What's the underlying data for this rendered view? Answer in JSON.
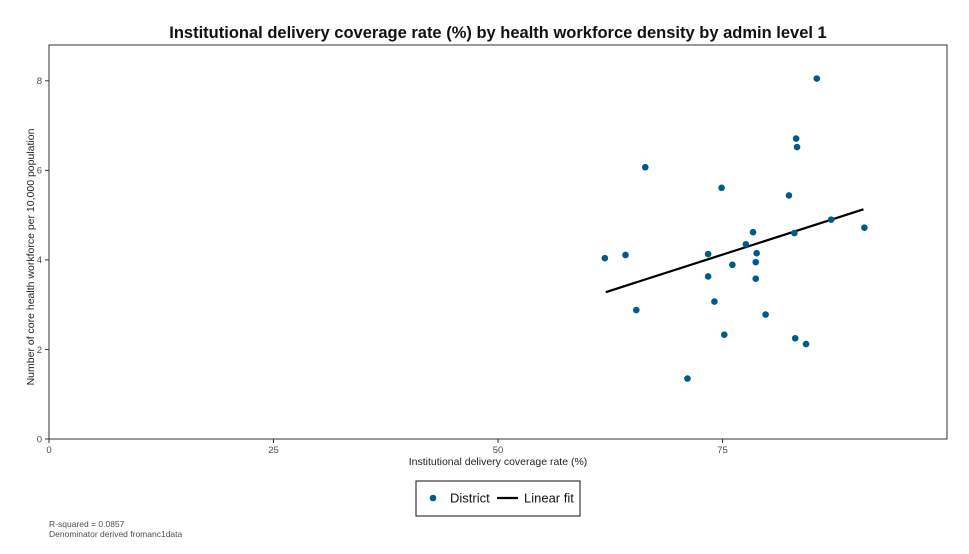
{
  "chart_data": {
    "type": "scatter",
    "title": "Institutional delivery coverage rate (%) by health workforce density by admin level 1",
    "xlabel": "Institutional delivery coverage rate (%)",
    "ylabel": "Number of core health workforce per 10,000 population",
    "xlim": [
      0,
      100
    ],
    "ylim": [
      0,
      8.8
    ],
    "x_ticks": [
      0,
      25,
      50,
      75
    ],
    "y_ticks": [
      0,
      2,
      4,
      6,
      8
    ],
    "grid": false,
    "legend_position": "bottom",
    "series": [
      {
        "name": "District",
        "kind": "points",
        "color": "#005a8c",
        "points": [
          {
            "x": 61.9,
            "y": 4.04
          },
          {
            "x": 64.2,
            "y": 4.11
          },
          {
            "x": 65.4,
            "y": 2.88
          },
          {
            "x": 66.4,
            "y": 6.07
          },
          {
            "x": 71.1,
            "y": 1.35
          },
          {
            "x": 73.4,
            "y": 4.13
          },
          {
            "x": 73.4,
            "y": 3.63
          },
          {
            "x": 74.1,
            "y": 3.07
          },
          {
            "x": 74.9,
            "y": 5.61
          },
          {
            "x": 75.2,
            "y": 2.33
          },
          {
            "x": 76.1,
            "y": 3.89
          },
          {
            "x": 77.6,
            "y": 4.35
          },
          {
            "x": 78.4,
            "y": 4.62
          },
          {
            "x": 78.7,
            "y": 3.95
          },
          {
            "x": 78.7,
            "y": 3.58
          },
          {
            "x": 78.8,
            "y": 4.15
          },
          {
            "x": 79.8,
            "y": 2.78
          },
          {
            "x": 82.4,
            "y": 5.44
          },
          {
            "x": 83.0,
            "y": 4.6
          },
          {
            "x": 83.1,
            "y": 2.25
          },
          {
            "x": 83.2,
            "y": 6.71
          },
          {
            "x": 83.3,
            "y": 6.52
          },
          {
            "x": 84.3,
            "y": 2.12
          },
          {
            "x": 85.5,
            "y": 8.05
          },
          {
            "x": 87.1,
            "y": 4.9
          },
          {
            "x": 90.8,
            "y": 4.72
          }
        ]
      },
      {
        "name": "Linear fit",
        "kind": "line",
        "color": "#000000",
        "points": [
          {
            "x": 62.0,
            "y": 3.28
          },
          {
            "x": 90.7,
            "y": 5.13
          }
        ]
      }
    ]
  },
  "legend": {
    "items": [
      {
        "label": "District"
      },
      {
        "label": "Linear fit"
      }
    ]
  },
  "footnotes": {
    "r_squared": "R-squared = 0.0857",
    "denominator": "Denominator derived fromanc1data"
  }
}
